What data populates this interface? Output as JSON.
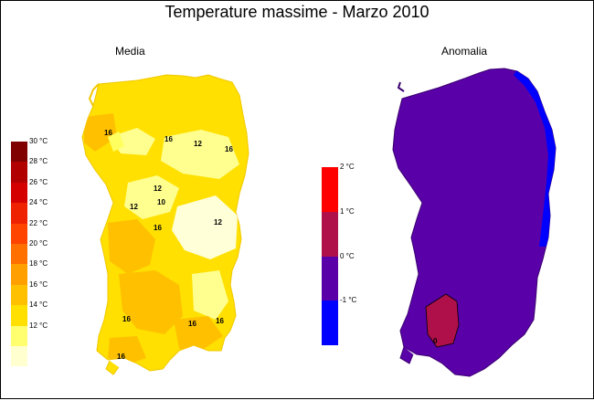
{
  "title": "Temperature massime - Marzo 2010",
  "panels": {
    "media": {
      "label": "Media"
    },
    "anomalia": {
      "label": "Anomalia"
    }
  },
  "legend_media": [
    {
      "label": "30 °C",
      "color": "#800000"
    },
    {
      "label": "28 °C",
      "color": "#b00000"
    },
    {
      "label": "26 °C",
      "color": "#d40000"
    },
    {
      "label": "24 °C",
      "color": "#ee2200"
    },
    {
      "label": "22 °C",
      "color": "#ff4400"
    },
    {
      "label": "20 °C",
      "color": "#ff7000"
    },
    {
      "label": "18 °C",
      "color": "#ffa000"
    },
    {
      "label": "16 °C",
      "color": "#ffc000"
    },
    {
      "label": "14 °C",
      "color": "#ffe000"
    },
    {
      "label": "12 °C",
      "color": "#ffff70"
    },
    {
      "label": "",
      "color": "#ffffd0"
    }
  ],
  "legend_anomalia": [
    {
      "label": "2 °C",
      "color": "#ff0000"
    },
    {
      "label": "1 °C",
      "color": "#b0104a"
    },
    {
      "label": "0 °C",
      "color": "#5a00a8"
    },
    {
      "label": "-1 °C",
      "color": "#0000ff"
    }
  ],
  "contour_labels_media": [
    "16",
    "16",
    "12",
    "16",
    "12",
    "12",
    "10",
    "16",
    "12",
    "16",
    "16",
    "16",
    "16"
  ],
  "contour_labels_anomalia": [
    "0"
  ]
}
